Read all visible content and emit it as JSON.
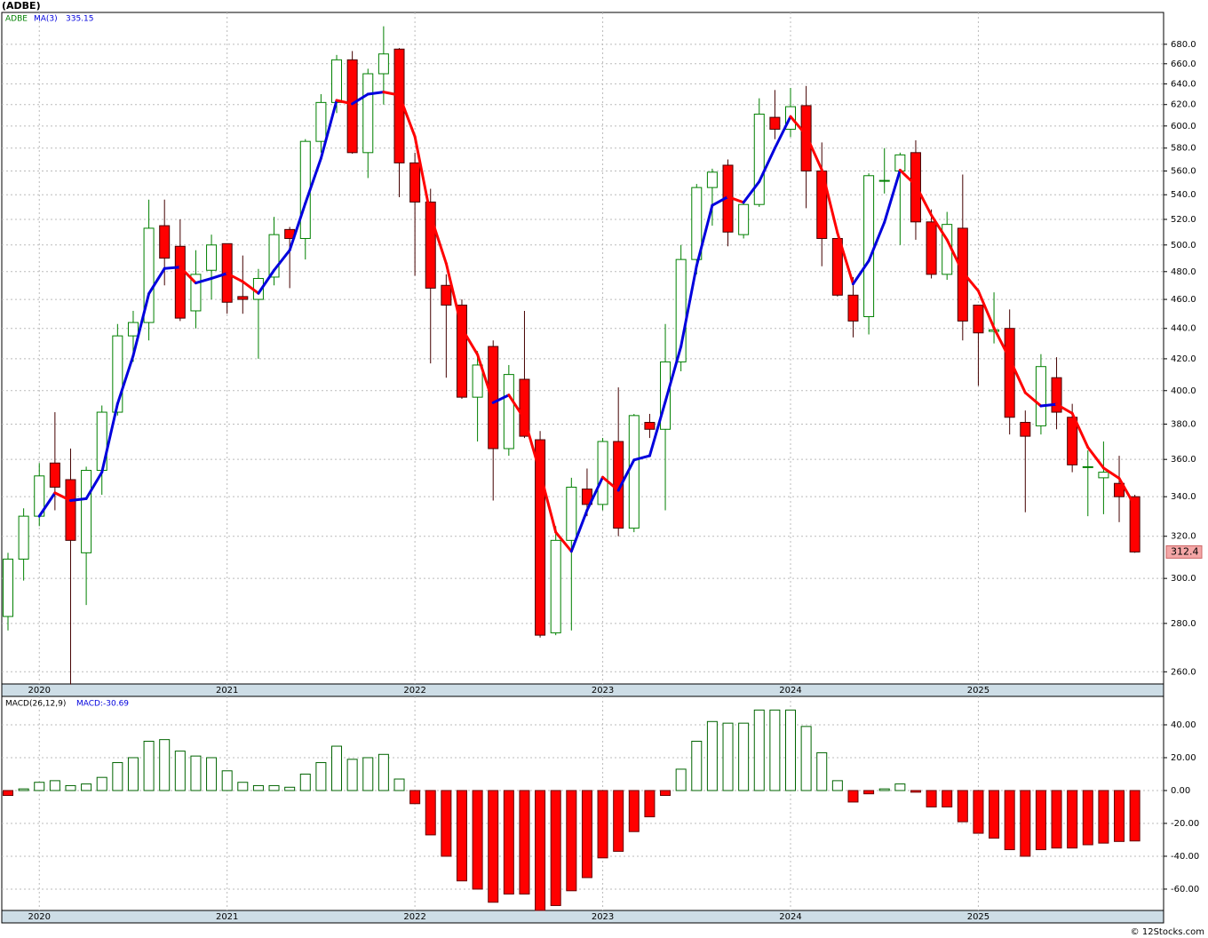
{
  "title": "(ADBE)",
  "footer": "© 12Stocks.com",
  "chart_data": [
    {
      "type": "candlestick",
      "name": "ADBE",
      "up_color": "#008000",
      "down_color": "#ff0000",
      "log_scale": true,
      "ylim": [
        255.2,
        714
      ],
      "grid": true,
      "yticks": [
        {
          "value": 260,
          "label": "260.0"
        },
        {
          "value": 280,
          "label": "280.0"
        },
        {
          "value": 300,
          "label": "300.0"
        },
        {
          "value": 320,
          "label": "320.0"
        },
        {
          "value": 340,
          "label": "340.0"
        },
        {
          "value": 360,
          "label": "360.0"
        },
        {
          "value": 380,
          "label": "380.0"
        },
        {
          "value": 400,
          "label": "400.0"
        },
        {
          "value": 420,
          "label": "420.0"
        },
        {
          "value": 440,
          "label": "440.0"
        },
        {
          "value": 460,
          "label": "460.0"
        },
        {
          "value": 480,
          "label": "480.0"
        },
        {
          "value": 500,
          "label": "500.0"
        },
        {
          "value": 520,
          "label": "520.0"
        },
        {
          "value": 540,
          "label": "540.0"
        },
        {
          "value": 560,
          "label": "560.0"
        },
        {
          "value": 580,
          "label": "580.0"
        },
        {
          "value": 600,
          "label": "600.0"
        },
        {
          "value": 620,
          "label": "620.0"
        },
        {
          "value": 640,
          "label": "640.0"
        },
        {
          "value": 660,
          "label": "660.0"
        },
        {
          "value": 680,
          "label": "680.0"
        }
      ],
      "xticks": [
        {
          "value": 2,
          "label": "2020"
        },
        {
          "value": 14,
          "label": "2021"
        },
        {
          "value": 26,
          "label": "2022"
        },
        {
          "value": 38,
          "label": "2023"
        },
        {
          "value": 50,
          "label": "2024"
        },
        {
          "value": 62,
          "label": "2025"
        }
      ],
      "open": [
        283,
        309,
        330,
        358,
        349,
        312,
        354,
        387,
        435,
        444,
        515,
        499,
        452,
        481,
        501,
        462,
        460,
        476,
        512,
        505,
        586,
        622,
        664,
        576,
        650,
        675,
        567,
        534,
        470,
        456,
        396,
        428,
        366,
        407,
        371,
        276,
        318,
        344,
        336,
        370,
        324,
        381,
        377,
        418,
        489,
        546,
        565,
        508,
        532,
        608,
        597,
        619,
        560,
        505,
        463,
        448,
        552,
        560,
        576,
        518,
        478,
        513,
        456,
        438,
        440,
        381,
        379,
        408,
        384,
        356,
        350,
        347,
        340
      ],
      "high": [
        312,
        334,
        358,
        387,
        366,
        356,
        391,
        443,
        452,
        536,
        536,
        520,
        496,
        508,
        501,
        492,
        482,
        522,
        514,
        588,
        630,
        669,
        673,
        655,
        699,
        676,
        576,
        545,
        478,
        460,
        425,
        432,
        416,
        452,
        376,
        325,
        350,
        355,
        372,
        402,
        386,
        386,
        443,
        500,
        549,
        562,
        570,
        535,
        626,
        634,
        636,
        638,
        585,
        505,
        476,
        558,
        580,
        576,
        587,
        528,
        526,
        557,
        456,
        465,
        453,
        388,
        423,
        421,
        392,
        365,
        370,
        362,
        341
      ],
      "low": [
        277,
        299,
        325,
        333,
        255,
        288,
        341,
        385,
        418,
        432,
        470,
        445,
        440,
        460,
        450,
        450,
        420,
        470,
        468,
        489,
        576,
        612,
        575,
        554,
        620,
        538,
        477,
        417,
        408,
        395,
        370,
        338,
        362,
        372,
        274,
        275,
        277,
        330,
        333,
        320,
        322,
        372,
        333,
        412,
        478,
        515,
        499,
        505,
        530,
        588,
        590,
        529,
        484,
        462,
        434,
        436,
        541,
        500,
        504,
        475,
        474,
        432,
        403,
        430,
        374,
        332,
        374,
        377,
        353,
        330,
        331,
        327,
        312
      ],
      "close": [
        309,
        330,
        351,
        345,
        318,
        354,
        387,
        435,
        444,
        513,
        490,
        447,
        478,
        500,
        458,
        460,
        475,
        508,
        505,
        586,
        622,
        664,
        576,
        650,
        670,
        567,
        534,
        468,
        456,
        396,
        416,
        366,
        410,
        373,
        275,
        318,
        345,
        336,
        370,
        324,
        385,
        377,
        418,
        489,
        546,
        559,
        510,
        532,
        611,
        597,
        618,
        560,
        505,
        463,
        445,
        556,
        552,
        574,
        518,
        478,
        516,
        445,
        437,
        439,
        384,
        373,
        415,
        387,
        357,
        356,
        353,
        340,
        312.4
      ],
      "last_price": 312.4,
      "ma": {
        "name": "MA(3)",
        "up_color": "#0000dd",
        "down_color": "#ff0000",
        "current": 335.15,
        "values": [
          null,
          null,
          330,
          342,
          338,
          339,
          353,
          392,
          422,
          464,
          482.3,
          483.3,
          471.7,
          475,
          478.7,
          472.7,
          464.3,
          481,
          496,
          533,
          571,
          624,
          620.7,
          630,
          632,
          629,
          590.3,
          523,
          486,
          440,
          422.7,
          392.7,
          397.3,
          383,
          352.7,
          322,
          312.7,
          333,
          350.3,
          343.3,
          359.7,
          362,
          393.3,
          428,
          484.3,
          531.3,
          538.3,
          533.7,
          551,
          580,
          608.7,
          591.7,
          561,
          509.3,
          471,
          488,
          517.7,
          560.7,
          548,
          523.3,
          504,
          479.7,
          466,
          440.3,
          420,
          398.7,
          390.7,
          391.7,
          386.3,
          366.7,
          355.3,
          349.7,
          335.15
        ]
      }
    },
    {
      "type": "bar",
      "name": "MACD(26,12,9)",
      "current_label": "MACD:-30.69",
      "pos_color": "#006400",
      "neg_color": "#ff0000",
      "ylim": [
        -73,
        57.3
      ],
      "grid": true,
      "yticks": [
        {
          "value": 40,
          "label": "40.00"
        },
        {
          "value": 20,
          "label": "20.00"
        },
        {
          "value": 0,
          "label": "0.00"
        },
        {
          "value": -20,
          "label": "-20.00"
        },
        {
          "value": -40,
          "label": "-40.00"
        },
        {
          "value": -60,
          "label": "-60.00"
        }
      ],
      "xticks": [
        {
          "value": 2,
          "label": "2020"
        },
        {
          "value": 14,
          "label": "2021"
        },
        {
          "value": 26,
          "label": "2022"
        },
        {
          "value": 38,
          "label": "2023"
        },
        {
          "value": 50,
          "label": "2024"
        },
        {
          "value": 62,
          "label": "2025"
        }
      ],
      "values": [
        -3,
        1,
        5,
        6,
        3,
        4,
        8,
        17,
        20,
        30,
        31,
        24,
        21,
        20,
        12,
        5,
        3,
        3,
        2,
        10,
        17,
        27,
        19,
        20,
        22,
        7,
        -8,
        -27,
        -40,
        -55,
        -60,
        -68,
        -63,
        -63,
        -73,
        -70,
        -61,
        -53,
        -41,
        -37,
        -25,
        -16,
        -3,
        13,
        30,
        42,
        41,
        41,
        49,
        49,
        49,
        39,
        23,
        6,
        -7,
        -2,
        1,
        4,
        -1,
        -10,
        -10,
        -19,
        -26,
        -29,
        -36,
        -40,
        -36,
        -35,
        -35,
        -33,
        -32,
        -31,
        -30.69
      ]
    }
  ]
}
